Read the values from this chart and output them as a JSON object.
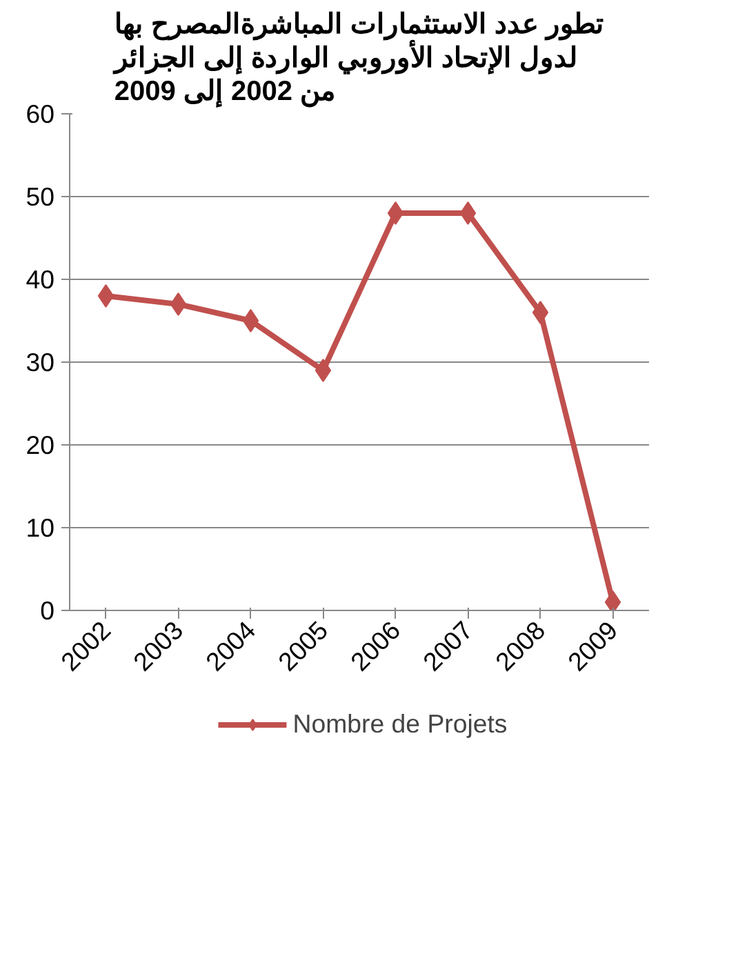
{
  "chart_data": {
    "type": "line",
    "title": "تطور عدد الاستثمارات المباشرةالمصرح بها\nلدول الإتحاد الأوروبي الواردة إلى الجزائر\nمن 2002 إلى 2009",
    "categories": [
      "2002",
      "2003",
      "2004",
      "2005",
      "2006",
      "2007",
      "2008",
      "2009"
    ],
    "series": [
      {
        "name": "Nombre de Projets",
        "color": "#c0504d",
        "values": [
          38,
          37,
          35,
          29,
          48,
          48,
          36,
          1
        ]
      }
    ],
    "ylim": [
      0,
      60
    ],
    "yticks": [
      0,
      10,
      20,
      30,
      40,
      50,
      60
    ],
    "grid": "y",
    "legend": "bottom",
    "marker": "diamond",
    "line_style": "solid"
  }
}
